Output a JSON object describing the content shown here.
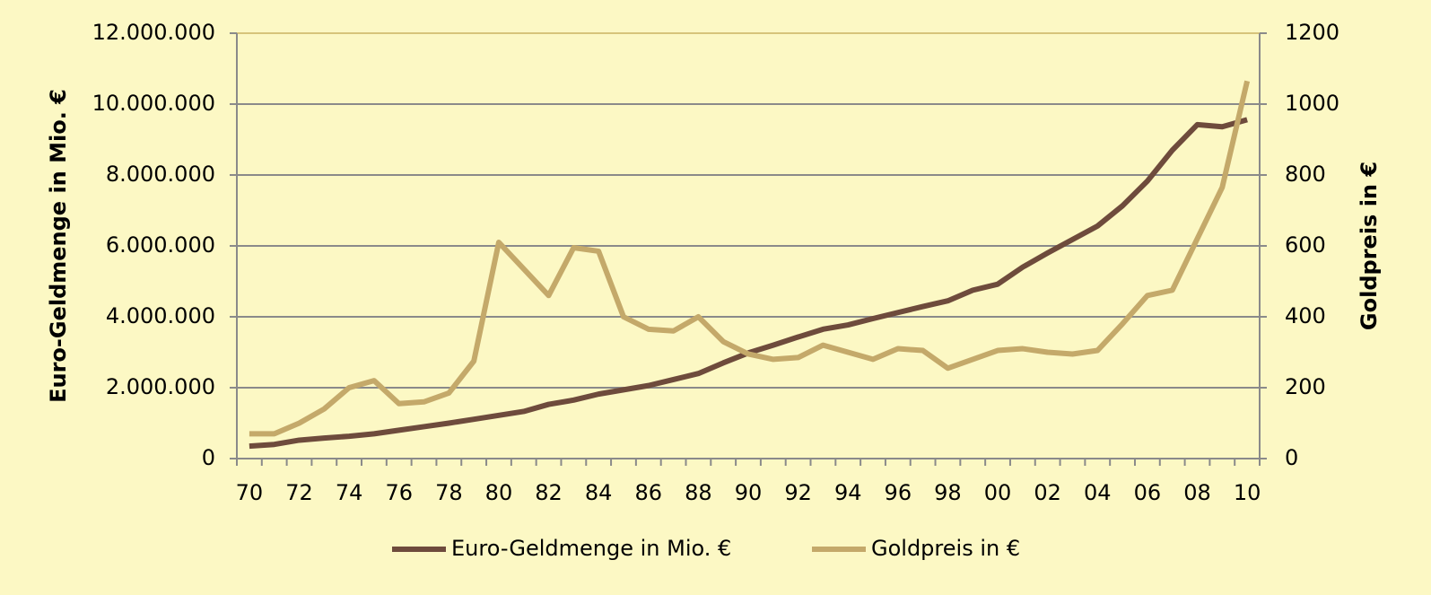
{
  "chart_data": {
    "type": "line",
    "ylabel": "Euro-Geldmenge in Mio. €",
    "y2label": "Goldpreis in €",
    "categories": [
      "70",
      null,
      "72",
      null,
      "74",
      null,
      "76",
      null,
      "78",
      null,
      "80",
      null,
      "82",
      null,
      "84",
      null,
      "86",
      null,
      "88",
      null,
      "90",
      null,
      "92",
      null,
      "94",
      null,
      "96",
      null,
      "98",
      null,
      "00",
      null,
      "02",
      null,
      "04",
      null,
      "06",
      null,
      "08",
      null,
      "10"
    ],
    "series": [
      {
        "name": "Euro-Geldmenge in Mio. €",
        "color": "#6e4b3c",
        "axis": "y",
        "values": [
          350000,
          400000,
          520000,
          580000,
          630000,
          700000,
          800000,
          900000,
          1000000,
          1110000,
          1220000,
          1330000,
          1530000,
          1650000,
          1820000,
          1940000,
          2060000,
          2230000,
          2400000,
          2700000,
          2980000,
          3200000,
          3430000,
          3650000,
          3770000,
          3950000,
          4120000,
          4290000,
          4450000,
          4750000,
          4920000,
          5400000,
          5800000,
          6180000,
          6560000,
          7130000,
          7830000,
          8700000,
          9420000,
          9360000,
          9560000
        ]
      },
      {
        "name": "Goldpreis in €",
        "color": "#c4a96a",
        "axis": "y2",
        "values": [
          70,
          70,
          100,
          140,
          200,
          220,
          155,
          160,
          185,
          275,
          610,
          535,
          460,
          595,
          585,
          400,
          365,
          360,
          400,
          330,
          295,
          280,
          285,
          320,
          300,
          280,
          310,
          305,
          255,
          280,
          305,
          310,
          300,
          295,
          305,
          380,
          460,
          475,
          620,
          765,
          1065
        ]
      }
    ],
    "ylim": [
      0,
      12000000
    ],
    "yticks": [
      0,
      {
        "value": 2000000,
        "label": "2.000.000"
      },
      {
        "value": 4000000,
        "label": "4.000.000"
      },
      {
        "value": 6000000,
        "label": "6.000.000"
      },
      {
        "value": 8000000,
        "label": "8.000.000"
      },
      {
        "value": 10000000,
        "label": "10.000.000"
      },
      {
        "value": 12000000,
        "label": "12.000.000"
      }
    ],
    "y2lim": [
      0,
      1200
    ],
    "y2ticks": [
      0,
      200,
      400,
      600,
      800,
      1000,
      1200
    ],
    "grid": true,
    "legend": "bottom"
  }
}
